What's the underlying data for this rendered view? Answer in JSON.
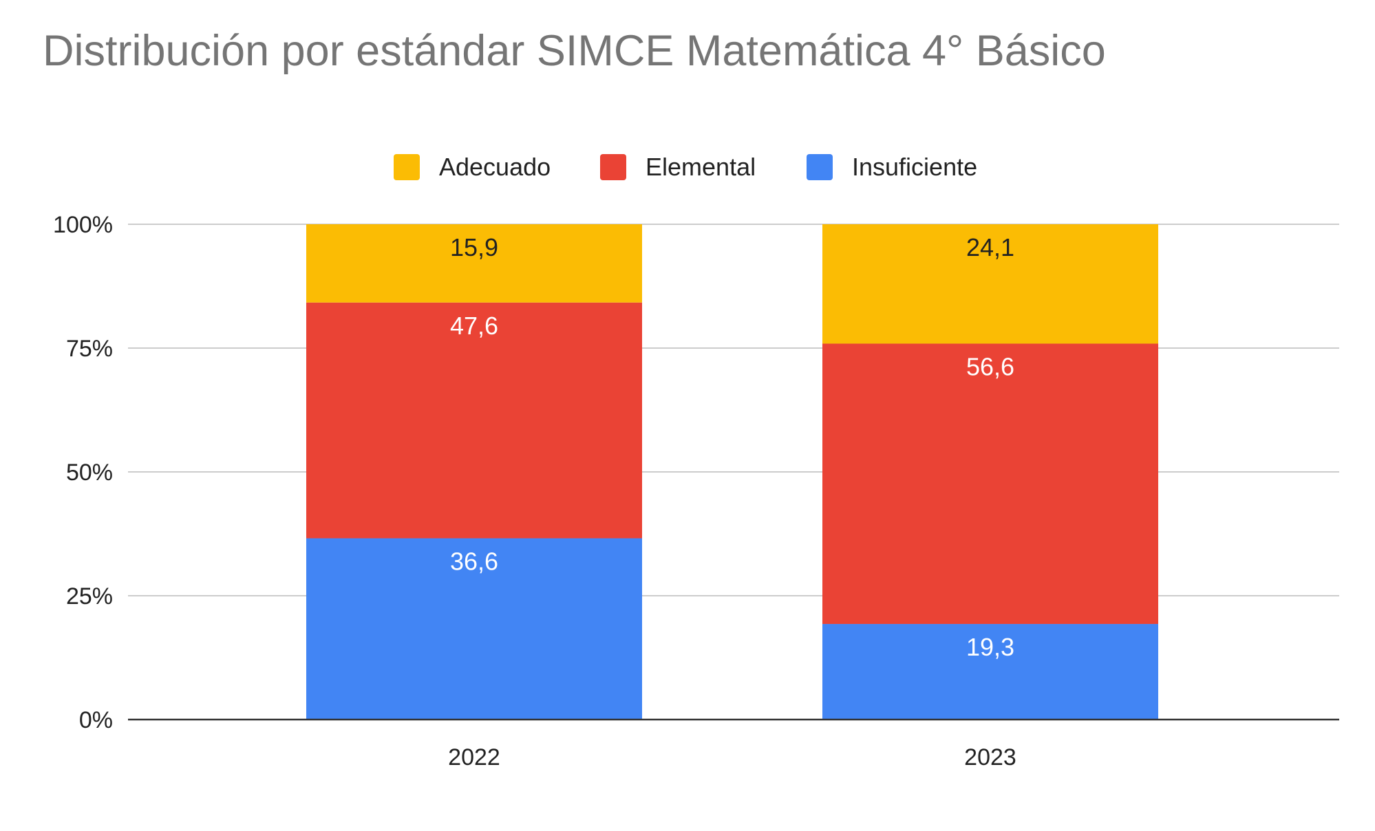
{
  "chart_data": {
    "type": "bar",
    "stacked": true,
    "title": "Distribución por estándar SIMCE Matemática 4° Básico",
    "categories": [
      "2022",
      "2023"
    ],
    "series": [
      {
        "name": "Insuficiente",
        "color": "#4285F4",
        "label_color": "#ffffff",
        "values": [
          36.6,
          19.3
        ],
        "labels": [
          "36,6",
          "19,3"
        ]
      },
      {
        "name": "Elemental",
        "color": "#EA4335",
        "label_color": "#ffffff",
        "values": [
          47.6,
          56.6
        ],
        "labels": [
          "47,6",
          "56,6"
        ]
      },
      {
        "name": "Adecuado",
        "color": "#FBBC04",
        "label_color": "#222222",
        "values": [
          15.9,
          24.1
        ],
        "labels": [
          "15,9",
          "24,1"
        ]
      }
    ],
    "legend_order": [
      "Adecuado",
      "Elemental",
      "Insuficiente"
    ],
    "legend_position": "top",
    "ylim": [
      0,
      100
    ],
    "yticks": [
      0,
      25,
      50,
      75,
      100
    ],
    "ytick_labels": [
      "0%",
      "25%",
      "50%",
      "75%",
      "100%"
    ],
    "grid": true
  }
}
